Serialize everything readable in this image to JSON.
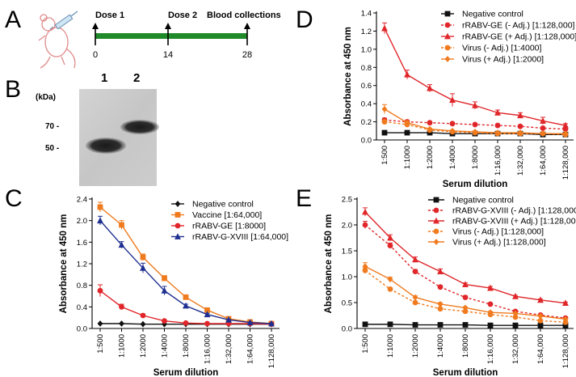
{
  "panels": {
    "A": "A",
    "B": "B",
    "C": "C",
    "D": "D",
    "E": "E"
  },
  "timeline": {
    "events": [
      {
        "label": "Dose 1",
        "day": "0"
      },
      {
        "label": "Dose 2",
        "day": "14"
      },
      {
        "label": "Blood collections",
        "day": "28"
      }
    ],
    "bar_color": "#1f8a2a"
  },
  "blot": {
    "unit_label": "(kDa)",
    "lanes": [
      "1",
      "2"
    ],
    "markers": [
      "70 -",
      "50 -"
    ]
  },
  "colors": {
    "black": "#111111",
    "orange": "#f07b1f",
    "red": "#e0262a",
    "navy": "#1f2f8f"
  },
  "chart_data": [
    {
      "id": "C",
      "type": "line",
      "categories": [
        "1:500",
        "1:1000",
        "1:2000",
        "1:4000",
        "1:8000",
        "1:16,000",
        "1:32,000",
        "1:64,000",
        "1:128,000"
      ],
      "xlabel": "Serum dilution",
      "ylabel": "Absorbance at 450 nm",
      "ylim": [
        0,
        2.4
      ],
      "yticks": [
        "0.0",
        "0.4",
        "0.8",
        "1.2",
        "1.6",
        "2.0",
        "2.4"
      ],
      "legend": "top-right",
      "series": [
        {
          "name": "Negative control",
          "color": "#111111",
          "marker": "diamond",
          "dash": false,
          "values": [
            0.09,
            0.09,
            0.08,
            0.08,
            0.08,
            0.08,
            0.08,
            0.08,
            0.08
          ],
          "err": [
            0.005,
            0.005,
            0.005,
            0.005,
            0.005,
            0.005,
            0.005,
            0.005,
            0.005
          ]
        },
        {
          "name": "Vaccine [1:64,000]",
          "color": "#f07b1f",
          "marker": "square",
          "dash": false,
          "values": [
            2.25,
            1.92,
            1.32,
            0.93,
            0.58,
            0.34,
            0.18,
            0.12,
            0.09
          ],
          "err": [
            0.09,
            0.08,
            0.06,
            0.05,
            0.04,
            0.02,
            0.01,
            0.01,
            0.01
          ]
        },
        {
          "name": "rRABV-GE [1:8000]",
          "color": "#e0262a",
          "marker": "circle",
          "dash": false,
          "values": [
            0.7,
            0.4,
            0.24,
            0.14,
            0.1,
            0.09,
            0.09,
            0.09,
            0.08
          ],
          "err": [
            0.11,
            0.05,
            0.03,
            0.01,
            0.01,
            0.01,
            0.01,
            0.01,
            0.01
          ]
        },
        {
          "name": "rRABV-G-XVIII [1:64,000]",
          "color": "#1f2f8f",
          "marker": "triangle",
          "dash": false,
          "values": [
            2.0,
            1.55,
            1.12,
            0.7,
            0.42,
            0.26,
            0.16,
            0.11,
            0.09
          ],
          "err": [
            0.08,
            0.06,
            0.09,
            0.08,
            0.03,
            0.02,
            0.01,
            0.01,
            0.01
          ]
        }
      ]
    },
    {
      "id": "D",
      "type": "line",
      "categories": [
        "1:500",
        "1:1000",
        "1:2000",
        "1:4000",
        "1:8000",
        "1:16,000",
        "1:32,000",
        "1:64,000",
        "1:128,000"
      ],
      "xlabel": "Serum dilution",
      "ylabel": "Absorbance at 450 nm",
      "ylim": [
        0,
        1.4
      ],
      "yticks": [
        "0.0",
        "0.2",
        "0.4",
        "0.6",
        "0.8",
        "1.0",
        "1.2",
        "1.4"
      ],
      "legend": "top-right",
      "series": [
        {
          "name": "Negative control",
          "color": "#111111",
          "marker": "square",
          "dash": false,
          "values": [
            0.08,
            0.08,
            0.08,
            0.07,
            0.07,
            0.07,
            0.07,
            0.06,
            0.06
          ],
          "err": [
            0.005,
            0.005,
            0.005,
            0.005,
            0.005,
            0.005,
            0.005,
            0.005,
            0.005
          ]
        },
        {
          "name": "rRABV-GE (- Adj.) [1:128,000]",
          "color": "#e0262a",
          "marker": "circle",
          "dash": true,
          "values": [
            0.22,
            0.2,
            0.19,
            0.18,
            0.17,
            0.16,
            0.15,
            0.13,
            0.12
          ],
          "err": [
            0.02,
            0.015,
            0.01,
            0.01,
            0.01,
            0.01,
            0.01,
            0.01,
            0.01
          ]
        },
        {
          "name": "rRABV-GE (+ Adj.) [1:128,000]",
          "color": "#e0262a",
          "marker": "triangle",
          "dash": false,
          "values": [
            1.23,
            0.72,
            0.57,
            0.44,
            0.38,
            0.3,
            0.27,
            0.21,
            0.16
          ],
          "err": [
            0.06,
            0.05,
            0.04,
            0.07,
            0.04,
            0.03,
            0.03,
            0.04,
            0.02
          ]
        },
        {
          "name": "Virus (- Adj.) [1:4000]",
          "color": "#f07b1f",
          "marker": "circle",
          "dash": true,
          "values": [
            0.2,
            0.17,
            0.11,
            0.09,
            0.08,
            0.07,
            0.07,
            0.07,
            0.06
          ],
          "err": [
            0.02,
            0.01,
            0.01,
            0.01,
            0.01,
            0.01,
            0.01,
            0.01,
            0.01
          ]
        },
        {
          "name": "Virus (+ Adj.) [1:2000]",
          "color": "#f07b1f",
          "marker": "diamond",
          "dash": false,
          "values": [
            0.34,
            0.19,
            0.12,
            0.1,
            0.09,
            0.08,
            0.08,
            0.07,
            0.07
          ],
          "err": [
            0.05,
            0.02,
            0.01,
            0.01,
            0.01,
            0.01,
            0.01,
            0.01,
            0.01
          ]
        }
      ]
    },
    {
      "id": "E",
      "type": "line",
      "categories": [
        "1:500",
        "1:1000",
        "1:2000",
        "1:4000",
        "1:8000",
        "1:16,000",
        "1:32,000",
        "1:64,000",
        "1:128,000"
      ],
      "xlabel": "Serum dilution",
      "ylabel": "Absorbance at 450 nm",
      "ylim": [
        0,
        2.5
      ],
      "yticks": [
        "0.0",
        "0.5",
        "1.0",
        "1.5",
        "2.0",
        "2.5"
      ],
      "legend": "top-right",
      "series": [
        {
          "name": "Negative control",
          "color": "#111111",
          "marker": "square",
          "dash": false,
          "values": [
            0.08,
            0.08,
            0.07,
            0.07,
            0.07,
            0.06,
            0.06,
            0.06,
            0.06
          ],
          "err": [
            0.005,
            0.005,
            0.005,
            0.005,
            0.005,
            0.005,
            0.005,
            0.005,
            0.005
          ]
        },
        {
          "name": "rRABV-G-XVIII (- Adj.) [1:128,000]",
          "color": "#e0262a",
          "marker": "circle",
          "dash": true,
          "values": [
            2.0,
            1.6,
            1.1,
            0.8,
            0.6,
            0.47,
            0.33,
            0.26,
            0.2
          ],
          "err": [
            0.07,
            0.05,
            0.04,
            0.03,
            0.03,
            0.02,
            0.02,
            0.02,
            0.02
          ]
        },
        {
          "name": "rRABV-G-XVIII (+ Adj.) [1:128,000]",
          "color": "#e0262a",
          "marker": "triangle",
          "dash": false,
          "values": [
            2.25,
            1.75,
            1.33,
            1.1,
            0.85,
            0.78,
            0.62,
            0.55,
            0.49
          ],
          "err": [
            0.08,
            0.06,
            0.05,
            0.05,
            0.03,
            0.03,
            0.02,
            0.02,
            0.02
          ]
        },
        {
          "name": "Virus (- Adj.) [1:128,000]",
          "color": "#f07b1f",
          "marker": "circle",
          "dash": true,
          "values": [
            1.12,
            0.76,
            0.5,
            0.38,
            0.33,
            0.27,
            0.22,
            0.15,
            0.12
          ],
          "err": [
            0.05,
            0.03,
            0.02,
            0.02,
            0.02,
            0.02,
            0.02,
            0.01,
            0.01
          ]
        },
        {
          "name": "Virus (+ Adj.) [1:128,000]",
          "color": "#f07b1f",
          "marker": "diamond",
          "dash": false,
          "values": [
            1.2,
            0.95,
            0.6,
            0.47,
            0.4,
            0.31,
            0.29,
            0.24,
            0.18
          ],
          "err": [
            0.07,
            0.04,
            0.03,
            0.03,
            0.02,
            0.02,
            0.02,
            0.02,
            0.02
          ]
        }
      ]
    }
  ]
}
